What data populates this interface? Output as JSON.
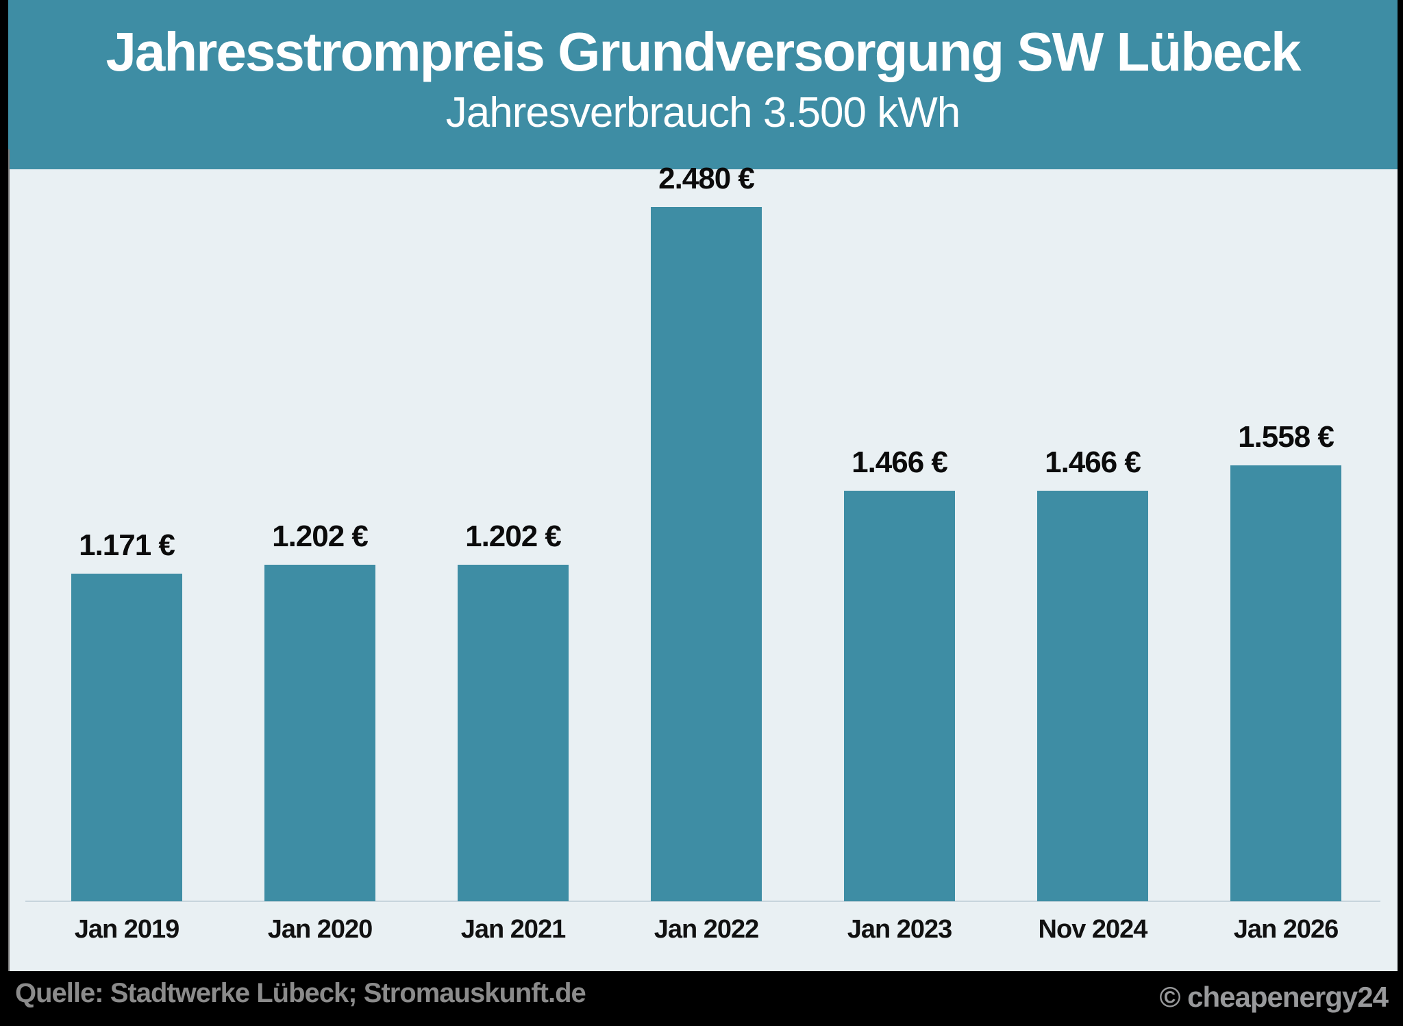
{
  "chart_data": {
    "type": "bar",
    "title": "Jahresstrompreis Grundversorgung SW Lübeck",
    "subtitle": "Jahresverbrauch 3.500 kWh",
    "categories": [
      "Jan 2019",
      "Jan 2020",
      "Jan 2021",
      "Jan 2022",
      "Jan 2023",
      "Nov 2024",
      "Jan 2026"
    ],
    "values": [
      1171,
      1202,
      1202,
      2480,
      1466,
      1466,
      1558
    ],
    "value_labels": [
      "1.171 €",
      "1.202 €",
      "1.202 €",
      "2.480 €",
      "1.466 €",
      "1.466 €",
      "1.558 €"
    ],
    "unit": "EUR pro Jahr",
    "xlabel": "",
    "ylabel": "",
    "ylim": [
      0,
      2480
    ],
    "grid": false,
    "legend": false,
    "bar_color": "#3E8DA4"
  },
  "footer": {
    "source": "Quelle: Stadtwerke Lübeck; Stromauskunft.de",
    "watermark": "© cheapenergy24"
  },
  "colors": {
    "header_bg": "#3E8DA4",
    "bar": "#3E8DA4",
    "plot_bg": "#E9F0F3",
    "page_bg": "#000000",
    "title_text": "#FFFFFF",
    "label_text": "#0B0B0B",
    "footer_source_text": "#8B8B8B",
    "footer_watermark_text": "#98999B",
    "axis_line": "#C7D5DC"
  }
}
